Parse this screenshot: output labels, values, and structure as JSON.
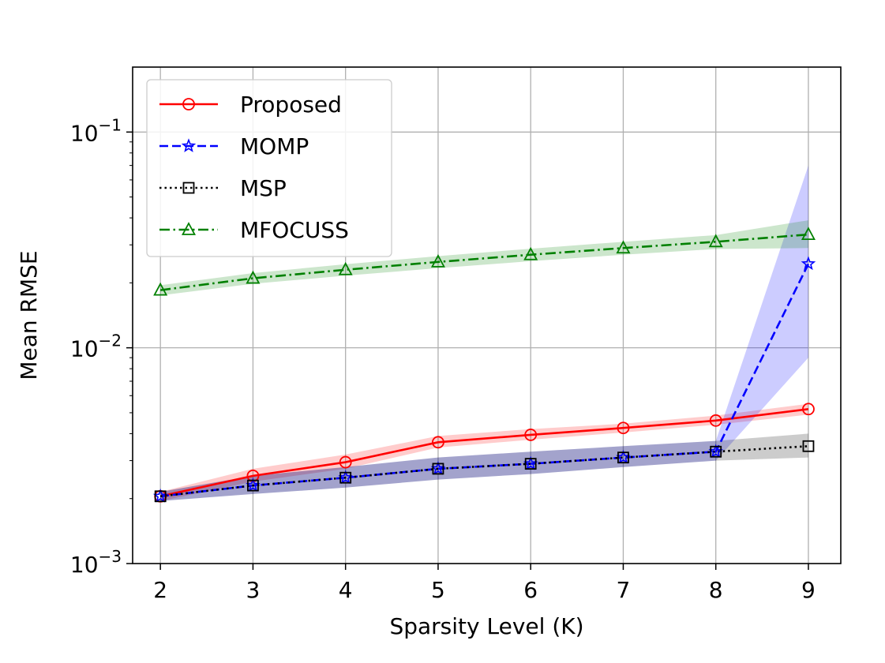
{
  "chart_data": {
    "type": "line",
    "title": "",
    "xlabel": "Sparsity Level (K)",
    "ylabel": "Mean RMSE",
    "yscale": "log",
    "x": [
      2,
      3,
      4,
      5,
      6,
      7,
      8,
      9
    ],
    "xlim": [
      1.7,
      9.35
    ],
    "ylim": [
      0.001,
      0.2
    ],
    "x_ticks": [
      "2",
      "3",
      "4",
      "5",
      "6",
      "7",
      "8",
      "9"
    ],
    "y_ticks": [
      {
        "value": 0.001,
        "base": "10",
        "exp": "−3"
      },
      {
        "value": 0.01,
        "base": "10",
        "exp": "−2"
      },
      {
        "value": 0.1,
        "base": "10",
        "exp": "−1"
      }
    ],
    "grid": true,
    "legend_position": "top-left",
    "series": [
      {
        "name": "Proposed",
        "color": "#ff0000",
        "linestyle": "solid",
        "marker": "circle",
        "values": [
          0.00205,
          0.00255,
          0.00295,
          0.00365,
          0.00395,
          0.00425,
          0.0046,
          0.0052
        ],
        "band_low": [
          0.00195,
          0.0024,
          0.00275,
          0.00345,
          0.00375,
          0.00405,
          0.0044,
          0.0049
        ],
        "band_high": [
          0.00215,
          0.00275,
          0.0032,
          0.0039,
          0.0042,
          0.00445,
          0.00485,
          0.0055
        ]
      },
      {
        "name": "MOMP",
        "color": "#0000ff",
        "linestyle": "dashed",
        "marker": "star",
        "values": [
          0.00205,
          0.0023,
          0.0025,
          0.00275,
          0.0029,
          0.0031,
          0.0033,
          0.0245
        ],
        "band_low": [
          0.00195,
          0.0021,
          0.00225,
          0.00245,
          0.0026,
          0.0028,
          0.003,
          0.009
        ],
        "band_high": [
          0.00215,
          0.00255,
          0.0028,
          0.0031,
          0.0033,
          0.0035,
          0.0037,
          0.07
        ]
      },
      {
        "name": "MSP",
        "color": "#000000",
        "linestyle": "dotted",
        "marker": "square",
        "values": [
          0.00205,
          0.0023,
          0.0025,
          0.00275,
          0.0029,
          0.0031,
          0.0033,
          0.0035
        ],
        "band_low": [
          0.00195,
          0.0021,
          0.00225,
          0.00245,
          0.0026,
          0.0028,
          0.003,
          0.0031
        ],
        "band_high": [
          0.00215,
          0.00255,
          0.0028,
          0.0031,
          0.0033,
          0.0035,
          0.0037,
          0.004
        ]
      },
      {
        "name": "MFOCUSS",
        "color": "#008000",
        "linestyle": "dashdot",
        "marker": "triangle",
        "values": [
          0.0185,
          0.021,
          0.023,
          0.025,
          0.027,
          0.029,
          0.031,
          0.0335
        ],
        "band_low": [
          0.0175,
          0.0198,
          0.0216,
          0.0234,
          0.0252,
          0.027,
          0.0287,
          0.029
        ],
        "band_high": [
          0.0195,
          0.0222,
          0.0244,
          0.0266,
          0.0288,
          0.031,
          0.0333,
          0.039
        ]
      }
    ]
  }
}
